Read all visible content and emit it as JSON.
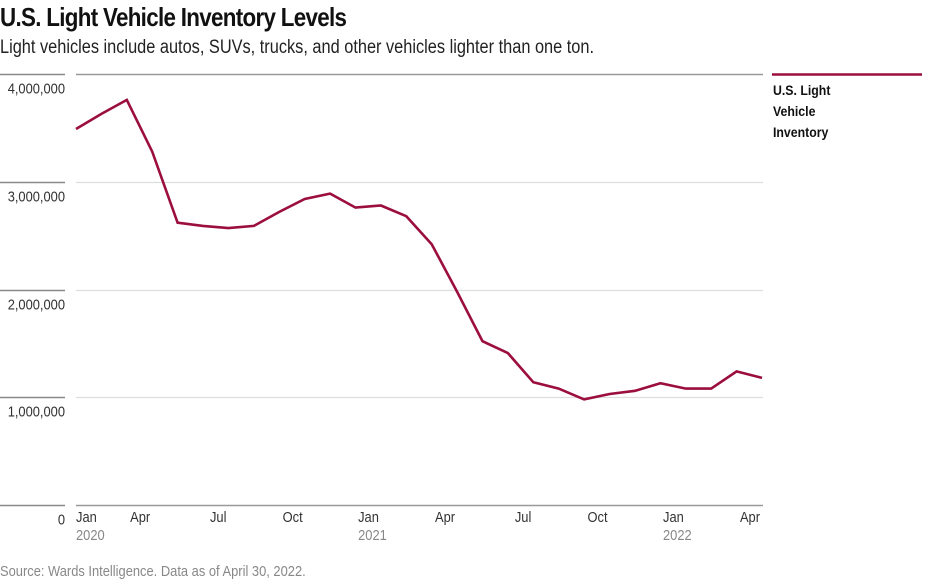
{
  "header": {
    "title": "U.S. Light Vehicle Inventory Levels",
    "subtitle": "Light vehicles include autos, SUVs, trucks, and other vehicles lighter than one ton."
  },
  "footer": {
    "source": "Source: Wards Intelligence. Data as of April 30, 2022."
  },
  "colors": {
    "series": "#9b0e3d",
    "axis": "#999999",
    "grid": "#dddddd",
    "tick_text": "#333333",
    "year_text": "#888888"
  },
  "chart_data": {
    "type": "line",
    "title": "U.S. Light Vehicle Inventory Levels",
    "subtitle": "Light vehicles include autos, SUVs, trucks, and other vehicles lighter than one ton.",
    "xlabel": "",
    "ylabel": "",
    "ylim": [
      0,
      4000000
    ],
    "yticks": [
      0,
      1000000,
      2000000,
      3000000,
      4000000
    ],
    "ytick_labels": [
      "0",
      "1,000,000",
      "2,000,000",
      "3,000,000",
      "4,000,000"
    ],
    "grid": true,
    "legend_position": "right",
    "x": [
      "2020-01",
      "2020-02",
      "2020-03",
      "2020-04",
      "2020-05",
      "2020-06",
      "2020-07",
      "2020-08",
      "2020-09",
      "2020-10",
      "2020-11",
      "2020-12",
      "2021-01",
      "2021-02",
      "2021-03",
      "2021-04",
      "2021-05",
      "2021-06",
      "2021-07",
      "2021-08",
      "2021-09",
      "2021-10",
      "2021-11",
      "2021-12",
      "2022-01",
      "2022-02",
      "2022-03",
      "2022-04"
    ],
    "xticks": [
      {
        "index": 0,
        "label": "Jan",
        "year": "2020"
      },
      {
        "index": 3,
        "label": "Apr",
        "year": ""
      },
      {
        "index": 6,
        "label": "Jul",
        "year": ""
      },
      {
        "index": 9,
        "label": "Oct",
        "year": ""
      },
      {
        "index": 12,
        "label": "Jan",
        "year": "2021"
      },
      {
        "index": 15,
        "label": "Apr",
        "year": ""
      },
      {
        "index": 18,
        "label": "Jul",
        "year": ""
      },
      {
        "index": 21,
        "label": "Oct",
        "year": ""
      },
      {
        "index": 24,
        "label": "Jan",
        "year": "2022"
      },
      {
        "index": 27,
        "label": "Apr",
        "year": ""
      }
    ],
    "series": [
      {
        "name": "U.S. Light Vehicle Inventory",
        "legend_lines": [
          "U.S. Light",
          "Vehicle",
          "Inventory"
        ],
        "values": [
          3490000,
          3630000,
          3760000,
          3280000,
          2620000,
          2590000,
          2570000,
          2590000,
          2720000,
          2840000,
          2890000,
          2760000,
          2780000,
          2680000,
          2420000,
          1980000,
          1520000,
          1410000,
          1140000,
          1080000,
          980000,
          1030000,
          1060000,
          1130000,
          1080000,
          1080000,
          1240000,
          1180000
        ]
      }
    ]
  }
}
